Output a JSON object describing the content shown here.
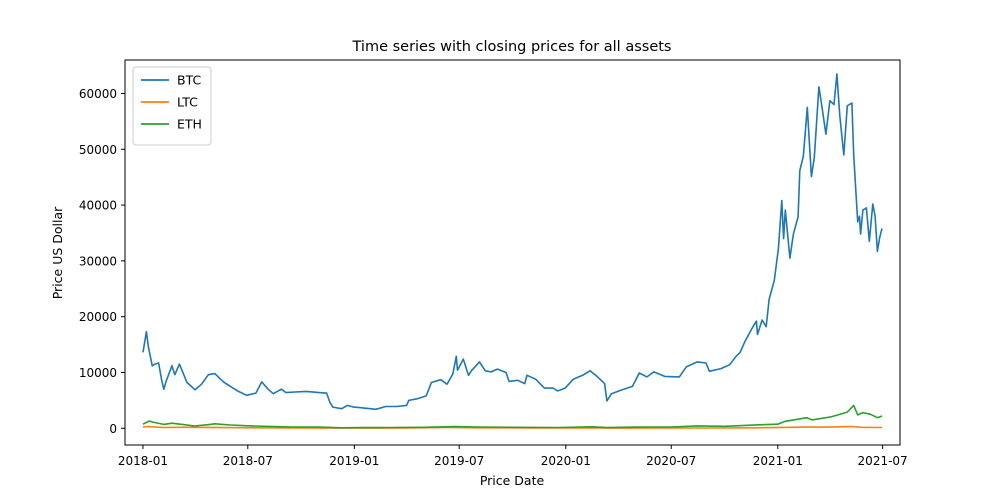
{
  "chart_data": {
    "type": "line",
    "title": "Time series with closing prices for all assets",
    "xlabel": "Price Date",
    "ylabel": "Price US Dollar",
    "xlim": [
      "2017-12-01",
      "2021-07-31"
    ],
    "ylim": [
      -3000,
      66000
    ],
    "x_ticks": [
      "2018-01",
      "2018-07",
      "2019-01",
      "2019-07",
      "2020-01",
      "2020-07",
      "2021-01",
      "2021-07"
    ],
    "y_ticks": [
      0,
      10000,
      20000,
      30000,
      40000,
      50000,
      60000
    ],
    "grid": false,
    "legend_position": "top-left",
    "series": [
      {
        "name": "BTC",
        "color": "#1f77b4",
        "points": [
          [
            "2018-01-01",
            13600
          ],
          [
            "2018-01-07",
            17300
          ],
          [
            "2018-01-10",
            14800
          ],
          [
            "2018-01-17",
            11200
          ],
          [
            "2018-01-22",
            11500
          ],
          [
            "2018-01-28",
            11700
          ],
          [
            "2018-02-02",
            8800
          ],
          [
            "2018-02-06",
            7000
          ],
          [
            "2018-02-10",
            8400
          ],
          [
            "2018-02-20",
            11200
          ],
          [
            "2018-02-25",
            9600
          ],
          [
            "2018-03-05",
            11500
          ],
          [
            "2018-03-18",
            8200
          ],
          [
            "2018-04-01",
            6900
          ],
          [
            "2018-04-12",
            7900
          ],
          [
            "2018-04-24",
            9600
          ],
          [
            "2018-05-05",
            9800
          ],
          [
            "2018-05-20",
            8300
          ],
          [
            "2018-06-01",
            7500
          ],
          [
            "2018-06-15",
            6600
          ],
          [
            "2018-06-29",
            5900
          ],
          [
            "2018-07-15",
            6300
          ],
          [
            "2018-07-25",
            8300
          ],
          [
            "2018-08-05",
            7000
          ],
          [
            "2018-08-14",
            6200
          ],
          [
            "2018-08-28",
            7000
          ],
          [
            "2018-09-05",
            6400
          ],
          [
            "2018-09-20",
            6500
          ],
          [
            "2018-10-10",
            6600
          ],
          [
            "2018-11-01",
            6400
          ],
          [
            "2018-11-14",
            6300
          ],
          [
            "2018-11-20",
            4600
          ],
          [
            "2018-11-25",
            3800
          ],
          [
            "2018-12-10",
            3500
          ],
          [
            "2018-12-20",
            4100
          ],
          [
            "2018-12-31",
            3800
          ],
          [
            "2019-01-10",
            3700
          ],
          [
            "2019-02-07",
            3400
          ],
          [
            "2019-02-24",
            3900
          ],
          [
            "2019-03-15",
            3900
          ],
          [
            "2019-04-01",
            4100
          ],
          [
            "2019-04-05",
            5000
          ],
          [
            "2019-04-20",
            5300
          ],
          [
            "2019-05-05",
            5800
          ],
          [
            "2019-05-14",
            8200
          ],
          [
            "2019-05-30",
            8700
          ],
          [
            "2019-06-10",
            7900
          ],
          [
            "2019-06-20",
            9700
          ],
          [
            "2019-06-26",
            12900
          ],
          [
            "2019-06-28",
            10400
          ],
          [
            "2019-07-08",
            12400
          ],
          [
            "2019-07-17",
            9500
          ],
          [
            "2019-07-22",
            10300
          ],
          [
            "2019-08-05",
            11900
          ],
          [
            "2019-08-15",
            10300
          ],
          [
            "2019-08-25",
            10100
          ],
          [
            "2019-09-05",
            10600
          ],
          [
            "2019-09-20",
            10000
          ],
          [
            "2019-09-25",
            8400
          ],
          [
            "2019-10-10",
            8600
          ],
          [
            "2019-10-22",
            8000
          ],
          [
            "2019-10-26",
            9500
          ],
          [
            "2019-11-10",
            8800
          ],
          [
            "2019-11-25",
            7200
          ],
          [
            "2019-12-10",
            7200
          ],
          [
            "2019-12-18",
            6700
          ],
          [
            "2019-12-31",
            7200
          ],
          [
            "2020-01-14",
            8800
          ],
          [
            "2020-01-30",
            9500
          ],
          [
            "2020-02-12",
            10300
          ],
          [
            "2020-02-25",
            9200
          ],
          [
            "2020-03-08",
            8000
          ],
          [
            "2020-03-12",
            4900
          ],
          [
            "2020-03-20",
            6200
          ],
          [
            "2020-04-05",
            6800
          ],
          [
            "2020-04-25",
            7500
          ],
          [
            "2020-05-07",
            9900
          ],
          [
            "2020-05-20",
            9200
          ],
          [
            "2020-06-01",
            10100
          ],
          [
            "2020-06-20",
            9300
          ],
          [
            "2020-07-15",
            9200
          ],
          [
            "2020-07-27",
            11000
          ],
          [
            "2020-08-15",
            11900
          ],
          [
            "2020-08-30",
            11700
          ],
          [
            "2020-09-05",
            10200
          ],
          [
            "2020-09-25",
            10700
          ],
          [
            "2020-10-10",
            11400
          ],
          [
            "2020-10-21",
            12900
          ],
          [
            "2020-10-28",
            13600
          ],
          [
            "2020-11-05",
            15500
          ],
          [
            "2020-11-17",
            17800
          ],
          [
            "2020-11-25",
            19200
          ],
          [
            "2020-11-27",
            16800
          ],
          [
            "2020-12-05",
            19400
          ],
          [
            "2020-12-12",
            18200
          ],
          [
            "2020-12-17",
            23100
          ],
          [
            "2020-12-26",
            26500
          ],
          [
            "2021-01-02",
            32200
          ],
          [
            "2021-01-08",
            40800
          ],
          [
            "2021-01-11",
            34000
          ],
          [
            "2021-01-14",
            39100
          ],
          [
            "2021-01-22",
            30500
          ],
          [
            "2021-01-28",
            34800
          ],
          [
            "2021-02-05",
            37900
          ],
          [
            "2021-02-08",
            46200
          ],
          [
            "2021-02-14",
            48700
          ],
          [
            "2021-02-21",
            57500
          ],
          [
            "2021-02-28",
            45100
          ],
          [
            "2021-03-05",
            48500
          ],
          [
            "2021-03-13",
            61200
          ],
          [
            "2021-03-18",
            57800
          ],
          [
            "2021-03-25",
            52700
          ],
          [
            "2021-04-01",
            58700
          ],
          [
            "2021-04-08",
            58000
          ],
          [
            "2021-04-13",
            63500
          ],
          [
            "2021-04-18",
            56000
          ],
          [
            "2021-04-25",
            49000
          ],
          [
            "2021-05-01",
            57800
          ],
          [
            "2021-05-09",
            58300
          ],
          [
            "2021-05-12",
            49000
          ],
          [
            "2021-05-19",
            37000
          ],
          [
            "2021-05-22",
            38000
          ],
          [
            "2021-05-24",
            34800
          ],
          [
            "2021-05-28",
            39100
          ],
          [
            "2021-06-03",
            39500
          ],
          [
            "2021-06-08",
            33500
          ],
          [
            "2021-06-14",
            40200
          ],
          [
            "2021-06-18",
            38000
          ],
          [
            "2021-06-22",
            31700
          ],
          [
            "2021-06-26",
            34200
          ],
          [
            "2021-06-30",
            35800
          ]
        ]
      },
      {
        "name": "LTC",
        "color": "#ff7f0e",
        "points": [
          [
            "2018-01-01",
            230
          ],
          [
            "2018-01-10",
            290
          ],
          [
            "2018-02-05",
            140
          ],
          [
            "2018-03-10",
            180
          ],
          [
            "2018-05-01",
            150
          ],
          [
            "2018-07-01",
            80
          ],
          [
            "2018-10-01",
            55
          ],
          [
            "2018-12-15",
            25
          ],
          [
            "2019-02-01",
            35
          ],
          [
            "2019-04-01",
            70
          ],
          [
            "2019-06-15",
            130
          ],
          [
            "2019-08-01",
            90
          ],
          [
            "2019-11-01",
            60
          ],
          [
            "2020-01-01",
            42
          ],
          [
            "2020-02-15",
            75
          ],
          [
            "2020-03-15",
            35
          ],
          [
            "2020-06-01",
            45
          ],
          [
            "2020-09-01",
            48
          ],
          [
            "2020-11-25",
            80
          ],
          [
            "2021-01-10",
            160
          ],
          [
            "2021-02-20",
            210
          ],
          [
            "2021-04-01",
            200
          ],
          [
            "2021-05-10",
            320
          ],
          [
            "2021-05-25",
            180
          ],
          [
            "2021-06-30",
            145
          ]
        ]
      },
      {
        "name": "ETH",
        "color": "#2ca02c",
        "points": [
          [
            "2018-01-01",
            750
          ],
          [
            "2018-01-12",
            1300
          ],
          [
            "2018-01-20",
            1050
          ],
          [
            "2018-02-06",
            700
          ],
          [
            "2018-02-20",
            900
          ],
          [
            "2018-03-10",
            700
          ],
          [
            "2018-03-31",
            400
          ],
          [
            "2018-04-25",
            650
          ],
          [
            "2018-05-05",
            800
          ],
          [
            "2018-06-01",
            580
          ],
          [
            "2018-07-01",
            450
          ],
          [
            "2018-08-15",
            290
          ],
          [
            "2018-09-15",
            210
          ],
          [
            "2018-11-01",
            200
          ],
          [
            "2018-12-10",
            90
          ],
          [
            "2019-01-15",
            125
          ],
          [
            "2019-03-01",
            135
          ],
          [
            "2019-05-01",
            170
          ],
          [
            "2019-06-25",
            300
          ],
          [
            "2019-08-01",
            220
          ],
          [
            "2019-10-01",
            180
          ],
          [
            "2019-12-20",
            130
          ],
          [
            "2020-02-15",
            260
          ],
          [
            "2020-03-12",
            110
          ],
          [
            "2020-05-01",
            210
          ],
          [
            "2020-07-01",
            230
          ],
          [
            "2020-08-15",
            430
          ],
          [
            "2020-10-01",
            360
          ],
          [
            "2020-11-25",
            600
          ],
          [
            "2021-01-01",
            730
          ],
          [
            "2021-01-12",
            1200
          ],
          [
            "2021-02-20",
            1900
          ],
          [
            "2021-03-01",
            1500
          ],
          [
            "2021-04-01",
            2000
          ],
          [
            "2021-04-15",
            2400
          ],
          [
            "2021-05-01",
            2900
          ],
          [
            "2021-05-12",
            4100
          ],
          [
            "2021-05-19",
            2400
          ],
          [
            "2021-05-28",
            2800
          ],
          [
            "2021-06-10",
            2500
          ],
          [
            "2021-06-22",
            1900
          ],
          [
            "2021-06-30",
            2200
          ]
        ]
      }
    ]
  }
}
